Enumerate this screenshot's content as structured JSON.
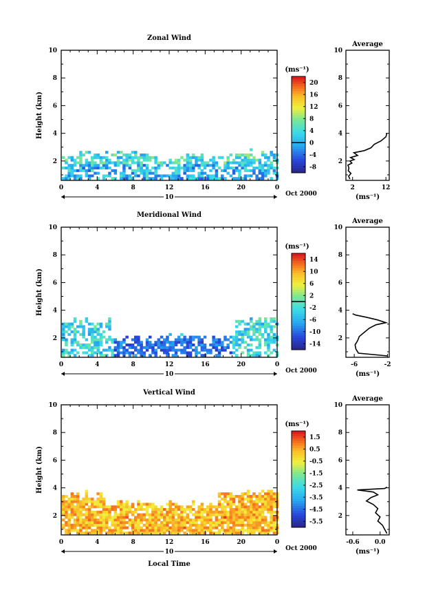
{
  "common": {
    "ylabel": "Height (km)",
    "unit_label": "(ms⁻¹)",
    "date_label": "Oct 2000",
    "day_label": "10",
    "average_title": "Average",
    "xlabel": "Local Time"
  },
  "chart_data": [
    {
      "type": "heatmap",
      "title": "Zonal Wind",
      "xlabel": "",
      "ylabel": "Height (km)",
      "x_ticks": [
        "0",
        "4",
        "8",
        "12",
        "16",
        "20",
        "0"
      ],
      "y_ticks": [
        "2",
        "4",
        "6",
        "8",
        "10"
      ],
      "xlim": [
        0,
        24
      ],
      "ylim": [
        0.6,
        10
      ],
      "colorbar": {
        "unit": "(ms⁻¹)",
        "ticks": [
          "20",
          "16",
          "12",
          "8",
          "4",
          "0",
          "-4",
          "-8"
        ],
        "min": -10,
        "max": 22,
        "zero_line": 0
      },
      "average": {
        "title": "Average",
        "x_ticks": [
          "2",
          "12"
        ],
        "xlim": [
          0,
          13
        ],
        "y_ticks": [
          "2",
          "4",
          "6",
          "8",
          "10"
        ],
        "profile": [
          [
            1.2,
            0.7
          ],
          [
            0.8,
            0.9
          ],
          [
            1.5,
            1.1
          ],
          [
            0.7,
            1.3
          ],
          [
            0.9,
            1.5
          ],
          [
            0.6,
            1.7
          ],
          [
            1.8,
            1.85
          ],
          [
            1.2,
            2.0
          ],
          [
            2.5,
            2.1
          ],
          [
            1.4,
            2.25
          ],
          [
            3.5,
            2.4
          ],
          [
            2.4,
            2.6
          ],
          [
            5.5,
            2.75
          ],
          [
            7.5,
            2.95
          ],
          [
            8.5,
            3.2
          ],
          [
            10.5,
            3.45
          ],
          [
            12.0,
            3.75
          ],
          [
            12.3,
            4.0
          ]
        ]
      }
    },
    {
      "type": "heatmap",
      "title": "Meridional Wind",
      "xlabel": "",
      "ylabel": "Height (km)",
      "x_ticks": [
        "0",
        "4",
        "8",
        "12",
        "16",
        "20",
        "0"
      ],
      "y_ticks": [
        "2",
        "4",
        "6",
        "8",
        "10"
      ],
      "xlim": [
        0,
        24
      ],
      "ylim": [
        0.6,
        10
      ],
      "colorbar": {
        "unit": "(ms⁻¹)",
        "ticks": [
          "14",
          "10",
          "6",
          "2",
          "-2",
          "-6",
          "-10",
          "-14"
        ],
        "min": -16,
        "max": 16,
        "zero_line": 0
      },
      "average": {
        "title": "Average",
        "x_ticks": [
          "-6",
          "-2"
        ],
        "xlim": [
          -7,
          -1.8
        ],
        "y_ticks": [
          "2",
          "4",
          "6",
          "8",
          "10"
        ],
        "profile": [
          [
            -2.0,
            0.7
          ],
          [
            -5.5,
            0.9
          ],
          [
            -5.8,
            1.2
          ],
          [
            -5.9,
            1.5
          ],
          [
            -5.6,
            1.8
          ],
          [
            -5.4,
            2.1
          ],
          [
            -4.8,
            2.4
          ],
          [
            -4.2,
            2.7
          ],
          [
            -3.4,
            2.95
          ],
          [
            -2.2,
            3.1
          ],
          [
            -3.2,
            3.3
          ],
          [
            -4.6,
            3.5
          ],
          [
            -5.8,
            3.65
          ],
          [
            -6.2,
            3.75
          ]
        ]
      }
    },
    {
      "type": "heatmap",
      "title": "Vertical Wind",
      "xlabel": "Local Time",
      "ylabel": "Height (km)",
      "x_ticks": [
        "0",
        "4",
        "8",
        "12",
        "16",
        "20",
        "0"
      ],
      "y_ticks": [
        "2",
        "4",
        "6",
        "8",
        "10"
      ],
      "xlim": [
        0,
        24
      ],
      "ylim": [
        0.6,
        10
      ],
      "colorbar": {
        "unit": "(ms⁻¹)",
        "ticks": [
          "1.5",
          "0.5",
          "-0.5",
          "-1.5",
          "-2.5",
          "-3.5",
          "-4.5",
          "-5.5"
        ],
        "min": -6,
        "max": 2
      },
      "average": {
        "title": "Average",
        "x_ticks": [
          "-0.6",
          "0.0"
        ],
        "xlim": [
          -0.75,
          0.2
        ],
        "y_ticks": [
          "2",
          "4",
          "6",
          "8",
          "10"
        ],
        "profile": [
          [
            0.15,
            0.7
          ],
          [
            0.1,
            1.0
          ],
          [
            0.05,
            1.3
          ],
          [
            -0.05,
            1.6
          ],
          [
            0.0,
            1.9
          ],
          [
            -0.1,
            2.2
          ],
          [
            -0.05,
            2.5
          ],
          [
            -0.15,
            2.8
          ],
          [
            -0.3,
            3.05
          ],
          [
            -0.2,
            3.3
          ],
          [
            -0.05,
            3.5
          ],
          [
            -0.15,
            3.7
          ],
          [
            -0.5,
            3.85
          ],
          [
            0.1,
            3.95
          ],
          [
            0.15,
            4.05
          ]
        ]
      }
    }
  ]
}
